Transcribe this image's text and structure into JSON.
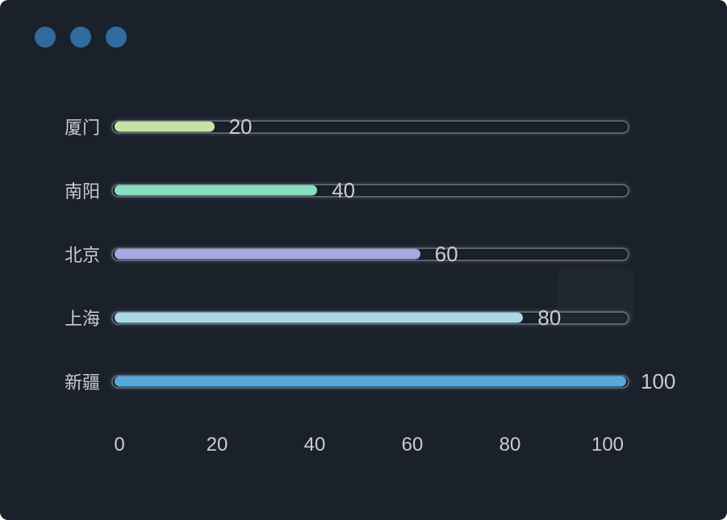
{
  "window": {
    "dots": [
      {
        "name": "window-dot-1"
      },
      {
        "name": "window-dot-2"
      },
      {
        "name": "window-dot-3"
      }
    ]
  },
  "colors": {
    "background": "#1a212b",
    "window_dot": "#2f6b9e",
    "text": "#c8cbd5",
    "track_border": "rgba(186,195,212,0.40)"
  },
  "chart_data": {
    "type": "bar",
    "orientation": "horizontal",
    "title": "",
    "xlabel": "",
    "ylabel": "",
    "categories": [
      "厦门",
      "南阳",
      "北京",
      "上海",
      "新疆"
    ],
    "values": [
      20,
      40,
      60,
      80,
      100
    ],
    "bar_colors": [
      "#c6e3a6",
      "#86e0c0",
      "#a3a8e0",
      "#a8d9e6",
      "#57a9db"
    ],
    "value_labels": [
      "20",
      "40",
      "60",
      "80",
      "100"
    ],
    "x_ticks": [
      0,
      20,
      40,
      60,
      80,
      100
    ],
    "xlim": [
      0,
      100
    ],
    "grid": false,
    "legend_position": "none"
  }
}
